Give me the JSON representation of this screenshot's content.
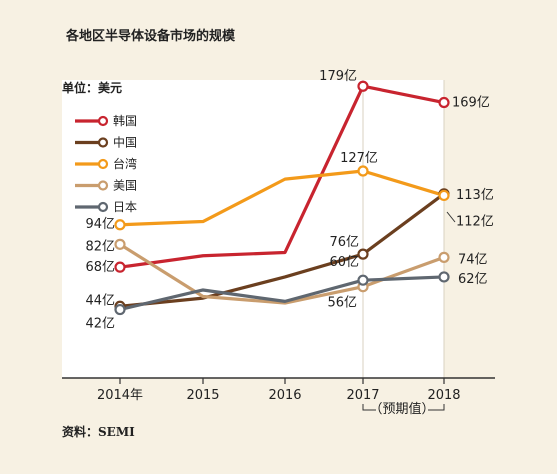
{
  "title": "各地区半导体设备市场的规模",
  "unit_label": "单位：美元",
  "source": "资料：SEMI",
  "forecast_note": "（预期值）",
  "colors": {
    "background": "#f7f1e3",
    "plot_background": "#ffffff",
    "axis": "#333333"
  },
  "chart_data": {
    "type": "line",
    "title": "各地区半导体设备市场的规模",
    "ylabel": "单位：美元",
    "x": [
      "2014年",
      "2015",
      "2016",
      "2017",
      "2018"
    ],
    "ylim": [
      0,
      200
    ],
    "grid": false,
    "legend_position": "top-left",
    "series": [
      {
        "name": "韩国",
        "color": "#c8242f",
        "values": [
          68,
          75,
          77,
          179,
          169
        ],
        "labels": {
          "0": "68亿",
          "3": "179亿",
          "4": "169亿"
        }
      },
      {
        "name": "中国",
        "color": "#6b3f1f",
        "values": [
          44,
          49,
          62,
          76,
          113
        ],
        "labels": {
          "0": "44亿",
          "3": "76亿",
          "4": "113亿"
        }
      },
      {
        "name": "台湾",
        "color": "#f39a1a",
        "values": [
          94,
          96,
          122,
          127,
          112
        ],
        "labels": {
          "0": "94亿",
          "3": "127亿",
          "4": "112亿"
        }
      },
      {
        "name": "美国",
        "color": "#c99d6e",
        "values": [
          82,
          50,
          46,
          56,
          74
        ],
        "labels": {
          "0": "82亿",
          "3": "56亿",
          "4": "74亿"
        }
      },
      {
        "name": "日本",
        "color": "#5f6770",
        "values": [
          42,
          54,
          47,
          60,
          62
        ],
        "labels": {
          "0": "42亿",
          "3": "60亿",
          "4": "62亿"
        }
      }
    ]
  }
}
